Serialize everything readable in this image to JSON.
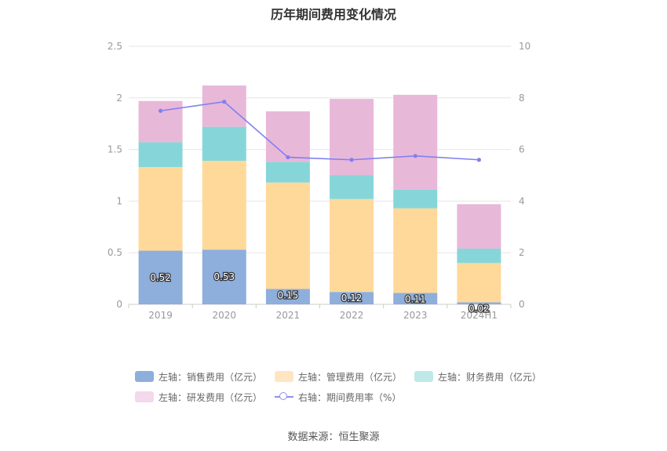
{
  "chart_data": {
    "type": "bar",
    "title": "历年期间费用变化情况",
    "categories": [
      "2019",
      "2020",
      "2021",
      "2022",
      "2023",
      "2024H1"
    ],
    "left_axis": {
      "min": 0,
      "max": 2.5,
      "ticks": [
        "0",
        "0.5",
        "1",
        "1.5",
        "2",
        "2.5"
      ]
    },
    "right_axis": {
      "min": 0,
      "max": 10,
      "ticks": [
        "0",
        "2",
        "4",
        "6",
        "8",
        "10"
      ]
    },
    "stacked": true,
    "grid": true,
    "legend_position": "bottom",
    "series": [
      {
        "name": "左轴：销售费用（亿元）",
        "color": "#8eaedc",
        "values": [
          0.52,
          0.53,
          0.15,
          0.12,
          0.11,
          0.02
        ],
        "labels": [
          "0.52",
          "0.53",
          "0.15",
          "0.12",
          "0.11",
          "0.02"
        ]
      },
      {
        "name": "左轴：管理费用（亿元）",
        "color": "#ffd999",
        "values": [
          0.81,
          0.86,
          1.03,
          0.9,
          0.82,
          0.38
        ]
      },
      {
        "name": "左轴：财务费用（亿元）",
        "color": "#86d6d9",
        "values": [
          0.24,
          0.33,
          0.2,
          0.23,
          0.18,
          0.14
        ]
      },
      {
        "name": "左轴：研发费用（亿元）",
        "color": "#e8b8d9",
        "values": [
          0.4,
          0.4,
          0.49,
          0.74,
          0.92,
          0.43
        ]
      },
      {
        "name": "右轴：期间费用率（%）",
        "type": "line",
        "axis": "right",
        "color": "#8080f0",
        "values": [
          7.5,
          7.85,
          5.7,
          5.6,
          5.75,
          5.6
        ]
      }
    ]
  },
  "legend_colors": {
    "sales": "#8eaedc",
    "admin": "#ffe6c0",
    "finance": "#bfe8e9",
    "rnd": "#f4d8ec"
  },
  "source": "数据来源：恒生聚源"
}
